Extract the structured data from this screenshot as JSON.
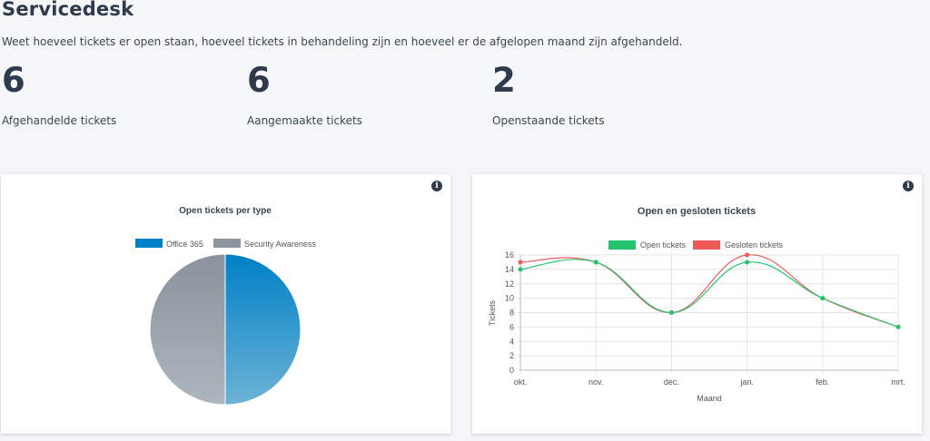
{
  "header": {
    "title": "Servicedesk",
    "subtitle": "Weet hoeveel tickets er open staan, hoeveel tickets in behandeling zijn en hoeveel er de afgelopen maand zijn afgehandeld."
  },
  "stats": [
    {
      "value": "6",
      "label": "Afgehandelde tickets"
    },
    {
      "value": "6",
      "label": "Aangemaakte tickets"
    },
    {
      "value": "2",
      "label": "Openstaande tickets"
    }
  ],
  "icons": {
    "info": "info-icon"
  },
  "colors": {
    "office365": "#0080c8",
    "security": "#8d959e",
    "open": "#22c46e",
    "gesloten": "#ee5a5a"
  },
  "chart_data": [
    {
      "type": "pie",
      "title": "Open tickets per type",
      "legend": "top",
      "categories": [
        "Office 365",
        "Security Awareness"
      ],
      "values": [
        1,
        1
      ]
    },
    {
      "type": "line",
      "title": "Open en gesloten tickets",
      "legend": "top",
      "xlabel": "Maand",
      "ylabel": "Tickets",
      "categories": [
        "okt.",
        "nov.",
        "dec.",
        "jan.",
        "feb.",
        "mrt."
      ],
      "ylim": [
        0,
        16
      ],
      "yticks": [
        0,
        2,
        4,
        6,
        8,
        10,
        12,
        14,
        16
      ],
      "grid": true,
      "series": [
        {
          "name": "Open tickets",
          "values": [
            14,
            15,
            8,
            15,
            10,
            6
          ]
        },
        {
          "name": "Gesloten tickets",
          "values": [
            15,
            15,
            8,
            16,
            10,
            6
          ]
        }
      ]
    }
  ]
}
